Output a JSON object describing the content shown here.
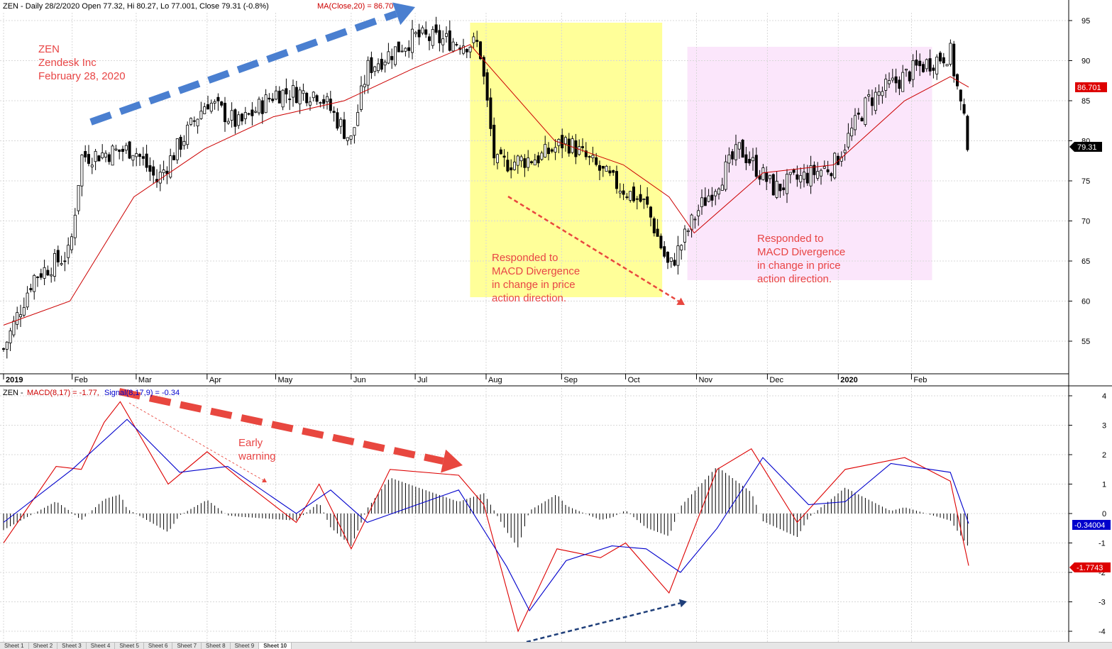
{
  "header": {
    "price_title": "ZEN - Daily 28/2/2020 Open 77.32, Hi 80.27, Lo 77.001, Close 79.31 (-0.8%)",
    "ma_title": "MA(Close,20) = 86.70",
    "macd_prefix": "ZEN - ",
    "macd_title": "MACD(8,17) = -1.77,",
    "signal_title": "Signal(8,17,9) = -0.34"
  },
  "annotations": {
    "title_line1": "ZEN",
    "title_line2": "Zendesk Inc",
    "title_line3": "February 28, 2020",
    "yellow_note": [
      "Responded to",
      "MACD Divergence",
      "in change in price",
      "action direction."
    ],
    "pink_note": [
      "Responded to",
      "MACD Divergence",
      "in change in price",
      "action direction."
    ],
    "early_warning": [
      "Early",
      "warning"
    ]
  },
  "labels": {
    "ma_value": "86.701",
    "close_value": "79.31",
    "signal_value": "-0.34004",
    "macd_value": "-1.7743"
  },
  "colors": {
    "candle": "#000000",
    "ma": "#cc0000",
    "macd": "#dd0000",
    "signal": "#0000cc",
    "highlight_yellow": "#ffff99",
    "highlight_pink": "#fbe6fb",
    "arrow_blue": "#4a7fd0",
    "arrow_red": "#e8473f",
    "note_red": "#e84545"
  },
  "tabs": [
    "Sheet 1",
    "Sheet 2",
    "Sheet 3",
    "Sheet 4",
    "Sheet 5",
    "Sheet 6",
    "Sheet 7",
    "Sheet 8",
    "Sheet 9",
    "Sheet 10"
  ],
  "chart_data": [
    {
      "type": "candlestick",
      "title": "ZEN - Daily 28/2/2020",
      "ylim": [
        51,
        96
      ],
      "yticks": [
        55,
        60,
        65,
        70,
        75,
        80,
        85,
        90,
        95
      ],
      "month_labels": [
        "2019",
        "Feb",
        "Mar",
        "Apr",
        "May",
        "Jun",
        "Jul",
        "Aug",
        "Sep",
        "Oct",
        "Nov",
        "Dec",
        "2020",
        "Feb"
      ],
      "approx_close_path": [
        [
          "2019-01-02",
          54
        ],
        [
          "2019-01-15",
          63
        ],
        [
          "2019-01-31",
          66
        ],
        [
          "2019-02-05",
          78
        ],
        [
          "2019-02-28",
          79
        ],
        [
          "2019-03-10",
          75
        ],
        [
          "2019-04-01",
          85
        ],
        [
          "2019-04-15",
          82
        ],
        [
          "2019-05-01",
          86
        ],
        [
          "2019-05-20",
          86
        ],
        [
          "2019-06-03",
          80
        ],
        [
          "2019-06-10",
          89
        ],
        [
          "2019-07-01",
          93
        ],
        [
          "2019-07-29",
          92
        ],
        [
          "2019-08-05",
          77
        ],
        [
          "2019-08-25",
          78
        ],
        [
          "2019-09-05",
          80
        ],
        [
          "2019-09-25",
          75
        ],
        [
          "2019-10-10",
          72
        ],
        [
          "2019-10-20",
          64
        ],
        [
          "2019-11-01",
          71
        ],
        [
          "2019-11-20",
          79
        ],
        [
          "2019-12-05",
          74
        ],
        [
          "2019-12-31",
          77
        ],
        [
          "2020-01-15",
          85
        ],
        [
          "2020-02-05",
          89
        ],
        [
          "2020-02-20",
          91
        ],
        [
          "2020-02-28",
          79.31
        ]
      ],
      "ma_series": {
        "name": "MA(Close,20)",
        "points": [
          [
            "2019-01-02",
            57
          ],
          [
            "2019-01-31",
            60
          ],
          [
            "2019-02-28",
            73
          ],
          [
            "2019-03-31",
            79
          ],
          [
            "2019-04-30",
            83
          ],
          [
            "2019-05-31",
            85
          ],
          [
            "2019-06-30",
            89
          ],
          [
            "2019-07-25",
            92
          ],
          [
            "2019-08-31",
            80
          ],
          [
            "2019-09-30",
            77
          ],
          [
            "2019-10-20",
            73
          ],
          [
            "2019-10-31",
            68.5
          ],
          [
            "2019-11-30",
            76
          ],
          [
            "2019-12-31",
            77
          ],
          [
            "2020-01-31",
            85
          ],
          [
            "2020-02-20",
            88
          ],
          [
            "2020-02-28",
            86.7
          ]
        ]
      }
    },
    {
      "type": "line",
      "title": "MACD(8,17)",
      "ylim": [
        -4.2,
        4.2
      ],
      "yticks": [
        -4,
        -3,
        -2,
        -1,
        0,
        1,
        2,
        3,
        4
      ],
      "series": [
        {
          "name": "MACD(8,17)",
          "points": [
            [
              "2019-01-02",
              -1.0
            ],
            [
              "2019-01-25",
              1.6
            ],
            [
              "2019-02-05",
              1.5
            ],
            [
              "2019-02-15",
              3.1
            ],
            [
              "2019-02-22",
              3.8
            ],
            [
              "2019-03-15",
              1.0
            ],
            [
              "2019-04-01",
              2.1
            ],
            [
              "2019-04-15",
              1.2
            ],
            [
              "2019-05-10",
              -0.3
            ],
            [
              "2019-05-20",
              1.0
            ],
            [
              "2019-06-03",
              -1.2
            ],
            [
              "2019-06-20",
              1.5
            ],
            [
              "2019-07-20",
              1.3
            ],
            [
              "2019-07-31",
              0.3
            ],
            [
              "2019-08-15",
              -4.0
            ],
            [
              "2019-09-01",
              -1.2
            ],
            [
              "2019-09-20",
              -1.5
            ],
            [
              "2019-10-01",
              -1.0
            ],
            [
              "2019-10-20",
              -2.7
            ],
            [
              "2019-11-10",
              1.5
            ],
            [
              "2019-11-25",
              2.2
            ],
            [
              "2019-12-15",
              -0.3
            ],
            [
              "2020-01-05",
              1.5
            ],
            [
              "2020-01-31",
              1.9
            ],
            [
              "2020-02-20",
              1.1
            ],
            [
              "2020-02-28",
              -1.77
            ]
          ]
        },
        {
          "name": "Signal(8,17,9)",
          "points": [
            [
              "2019-01-02",
              -0.3
            ],
            [
              "2019-02-01",
              1.5
            ],
            [
              "2019-02-25",
              3.2
            ],
            [
              "2019-03-20",
              1.4
            ],
            [
              "2019-04-10",
              1.6
            ],
            [
              "2019-05-10",
              0.0
            ],
            [
              "2019-05-25",
              0.8
            ],
            [
              "2019-06-10",
              -0.3
            ],
            [
              "2019-07-20",
              0.8
            ],
            [
              "2019-08-10",
              -1.8
            ],
            [
              "2019-08-20",
              -3.3
            ],
            [
              "2019-09-05",
              -1.6
            ],
            [
              "2019-09-25",
              -1.1
            ],
            [
              "2019-10-10",
              -1.2
            ],
            [
              "2019-10-25",
              -2.0
            ],
            [
              "2019-11-10",
              -0.5
            ],
            [
              "2019-11-30",
              1.9
            ],
            [
              "2019-12-20",
              0.3
            ],
            [
              "2020-01-05",
              0.4
            ],
            [
              "2020-01-25",
              1.7
            ],
            [
              "2020-02-20",
              1.4
            ],
            [
              "2020-02-28",
              -0.34
            ]
          ]
        }
      ]
    }
  ]
}
